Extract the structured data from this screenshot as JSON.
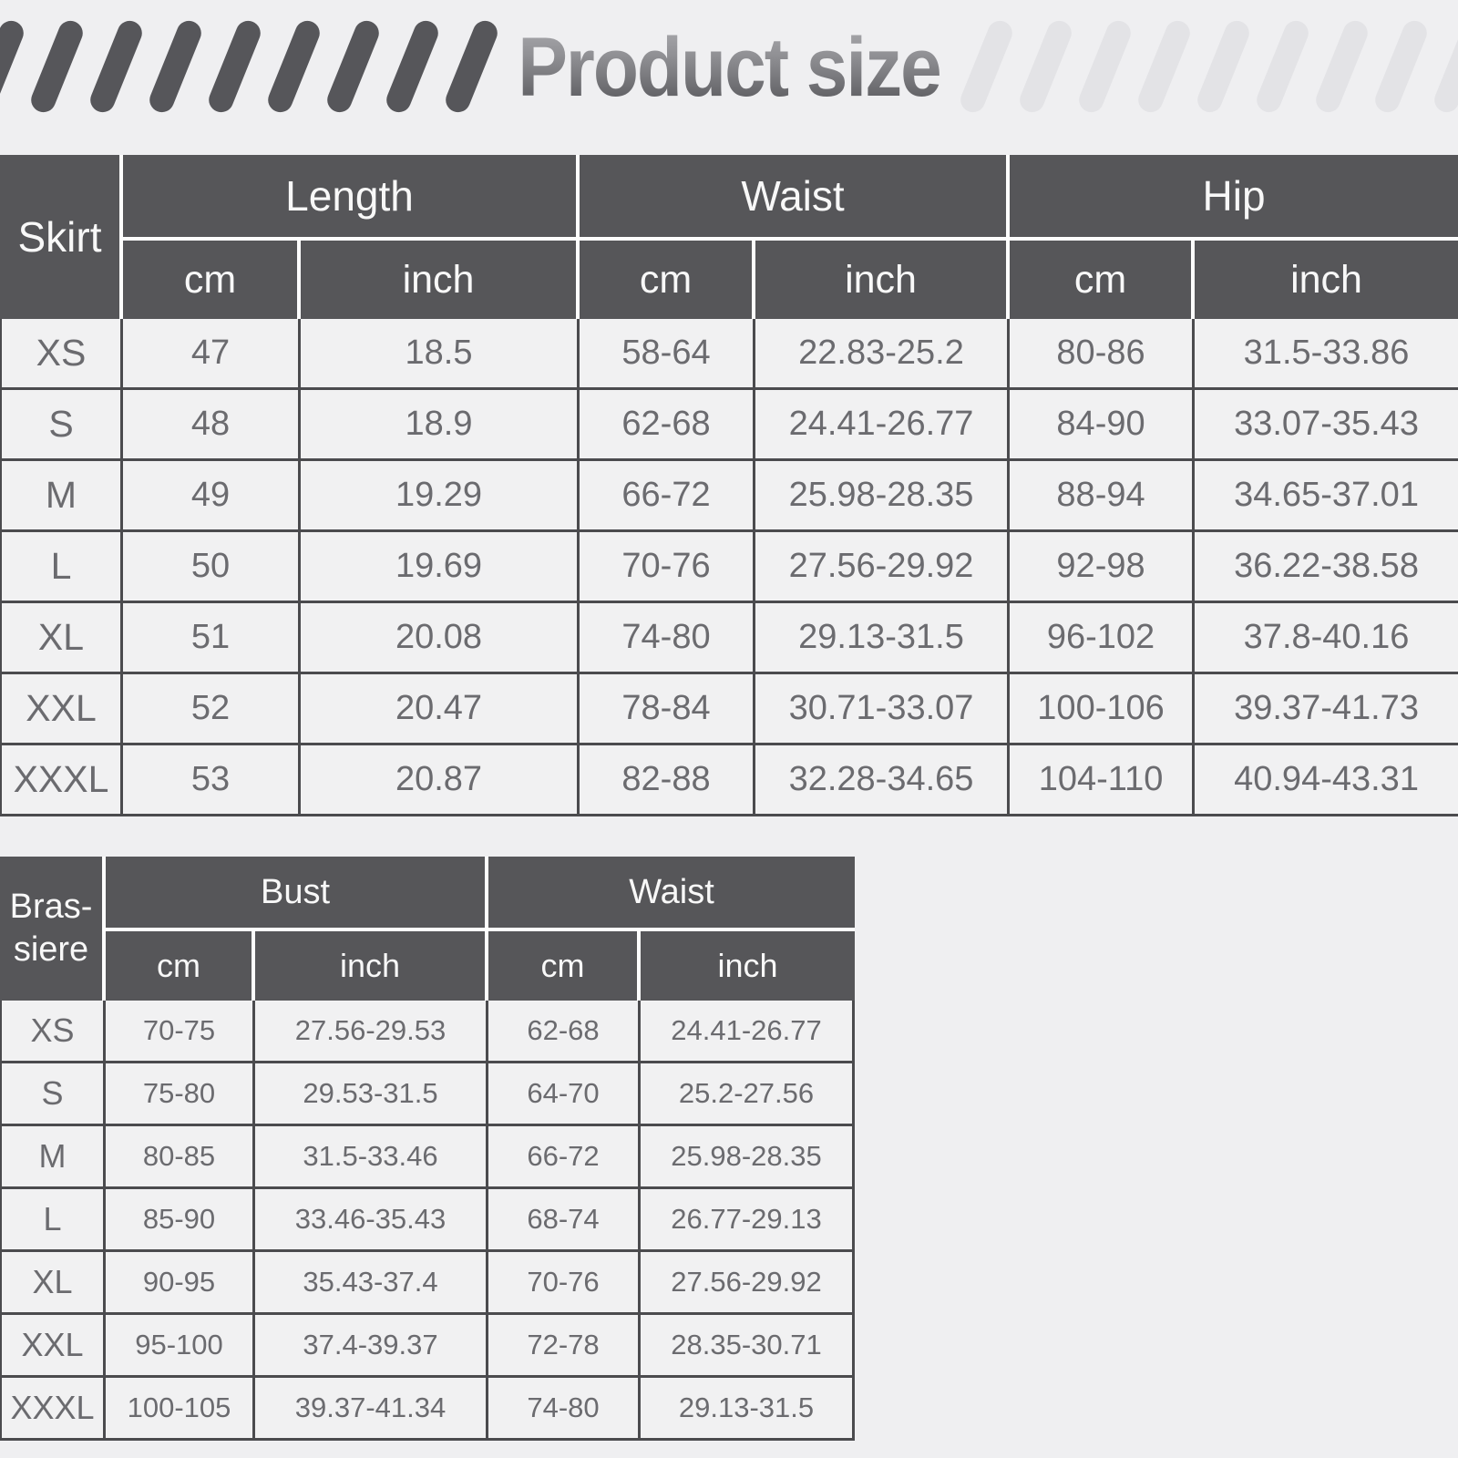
{
  "title": "Product size",
  "colors": {
    "page_bg": "#EFEFF1",
    "header_bg": "#565659",
    "header_text": "#F8F8F8",
    "cell_bg": "#F1F1F2",
    "cell_text": "#6B6B6F",
    "grid_border": "#4B4B4E",
    "white_separator": "#FDFDFD",
    "stripe_dark": "#56565A",
    "stripe_light": "#E3E3E6"
  },
  "skirt_table": {
    "corner_label": "Skirt",
    "groups": [
      "Length",
      "Waist",
      "Hip"
    ],
    "units": [
      "cm",
      "inch",
      "cm",
      "inch",
      "cm",
      "inch"
    ],
    "rows": [
      {
        "size": "XS",
        "cells": [
          "47",
          "18.5",
          "58-64",
          "22.83-25.2",
          "80-86",
          "31.5-33.86"
        ]
      },
      {
        "size": "S",
        "cells": [
          "48",
          "18.9",
          "62-68",
          "24.41-26.77",
          "84-90",
          "33.07-35.43"
        ]
      },
      {
        "size": "M",
        "cells": [
          "49",
          "19.29",
          "66-72",
          "25.98-28.35",
          "88-94",
          "34.65-37.01"
        ]
      },
      {
        "size": "L",
        "cells": [
          "50",
          "19.69",
          "70-76",
          "27.56-29.92",
          "92-98",
          "36.22-38.58"
        ]
      },
      {
        "size": "XL",
        "cells": [
          "51",
          "20.08",
          "74-80",
          "29.13-31.5",
          "96-102",
          "37.8-40.16"
        ]
      },
      {
        "size": "XXL",
        "cells": [
          "52",
          "20.47",
          "78-84",
          "30.71-33.07",
          "100-106",
          "39.37-41.73"
        ]
      },
      {
        "size": "XXXL",
        "cells": [
          "53",
          "20.87",
          "82-88",
          "32.28-34.65",
          "104-110",
          "40.94-43.31"
        ]
      }
    ]
  },
  "brassiere_table": {
    "corner_label_lines": [
      "Bras-",
      "siere"
    ],
    "groups": [
      "Bust",
      "Waist"
    ],
    "units": [
      "cm",
      "inch",
      "cm",
      "inch"
    ],
    "rows": [
      {
        "size": "XS",
        "cells": [
          "70-75",
          "27.56-29.53",
          "62-68",
          "24.41-26.77"
        ]
      },
      {
        "size": "S",
        "cells": [
          "75-80",
          "29.53-31.5",
          "64-70",
          "25.2-27.56"
        ]
      },
      {
        "size": "M",
        "cells": [
          "80-85",
          "31.5-33.46",
          "66-72",
          "25.98-28.35"
        ]
      },
      {
        "size": "L",
        "cells": [
          "85-90",
          "33.46-35.43",
          "68-74",
          "26.77-29.13"
        ]
      },
      {
        "size": "XL",
        "cells": [
          "90-95",
          "35.43-37.4",
          "70-76",
          "27.56-29.92"
        ]
      },
      {
        "size": "XXL",
        "cells": [
          "95-100",
          "37.4-39.37",
          "72-78",
          "28.35-30.71"
        ]
      },
      {
        "size": "XXXL",
        "cells": [
          "100-105",
          "39.37-41.34",
          "74-80",
          "29.13-31.5"
        ]
      }
    ]
  }
}
